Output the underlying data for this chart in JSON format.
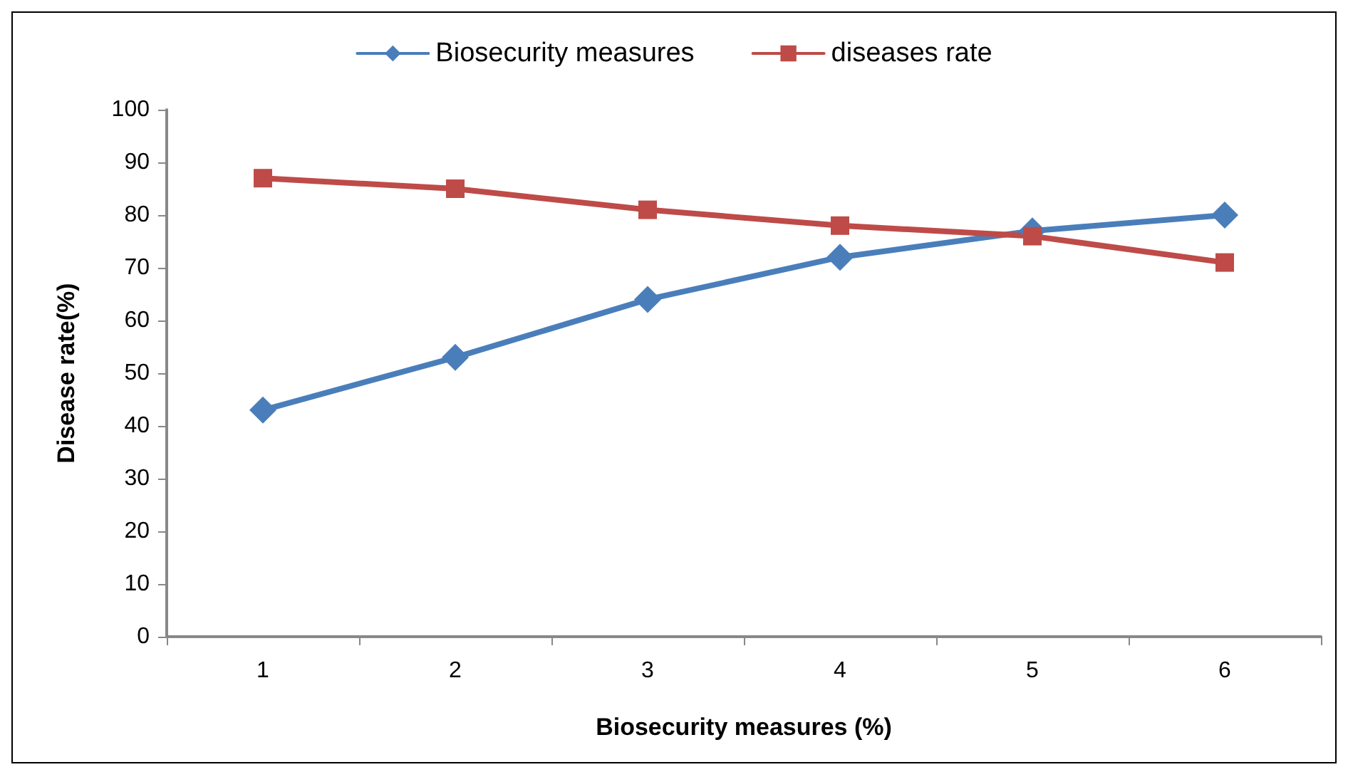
{
  "chart_data": {
    "type": "line",
    "xlabel": "Biosecurity measures (%)",
    "ylabel": "Disease rate(%)",
    "categories": [
      "1",
      "2",
      "3",
      "4",
      "5",
      "6"
    ],
    "series": [
      {
        "name": "Biosecurity measures",
        "color": "#4a7ebb",
        "marker": "diamond",
        "values": [
          43,
          53,
          64,
          72,
          77,
          80
        ]
      },
      {
        "name": "diseases rate",
        "color": "#be4b48",
        "marker": "square",
        "values": [
          87,
          85,
          81,
          78,
          76,
          71
        ]
      }
    ],
    "ylim": [
      0,
      100
    ],
    "yticks": [
      0,
      10,
      20,
      30,
      40,
      50,
      60,
      70,
      80,
      90,
      100
    ],
    "grid": false,
    "legend": "top",
    "line_style": "solid"
  }
}
